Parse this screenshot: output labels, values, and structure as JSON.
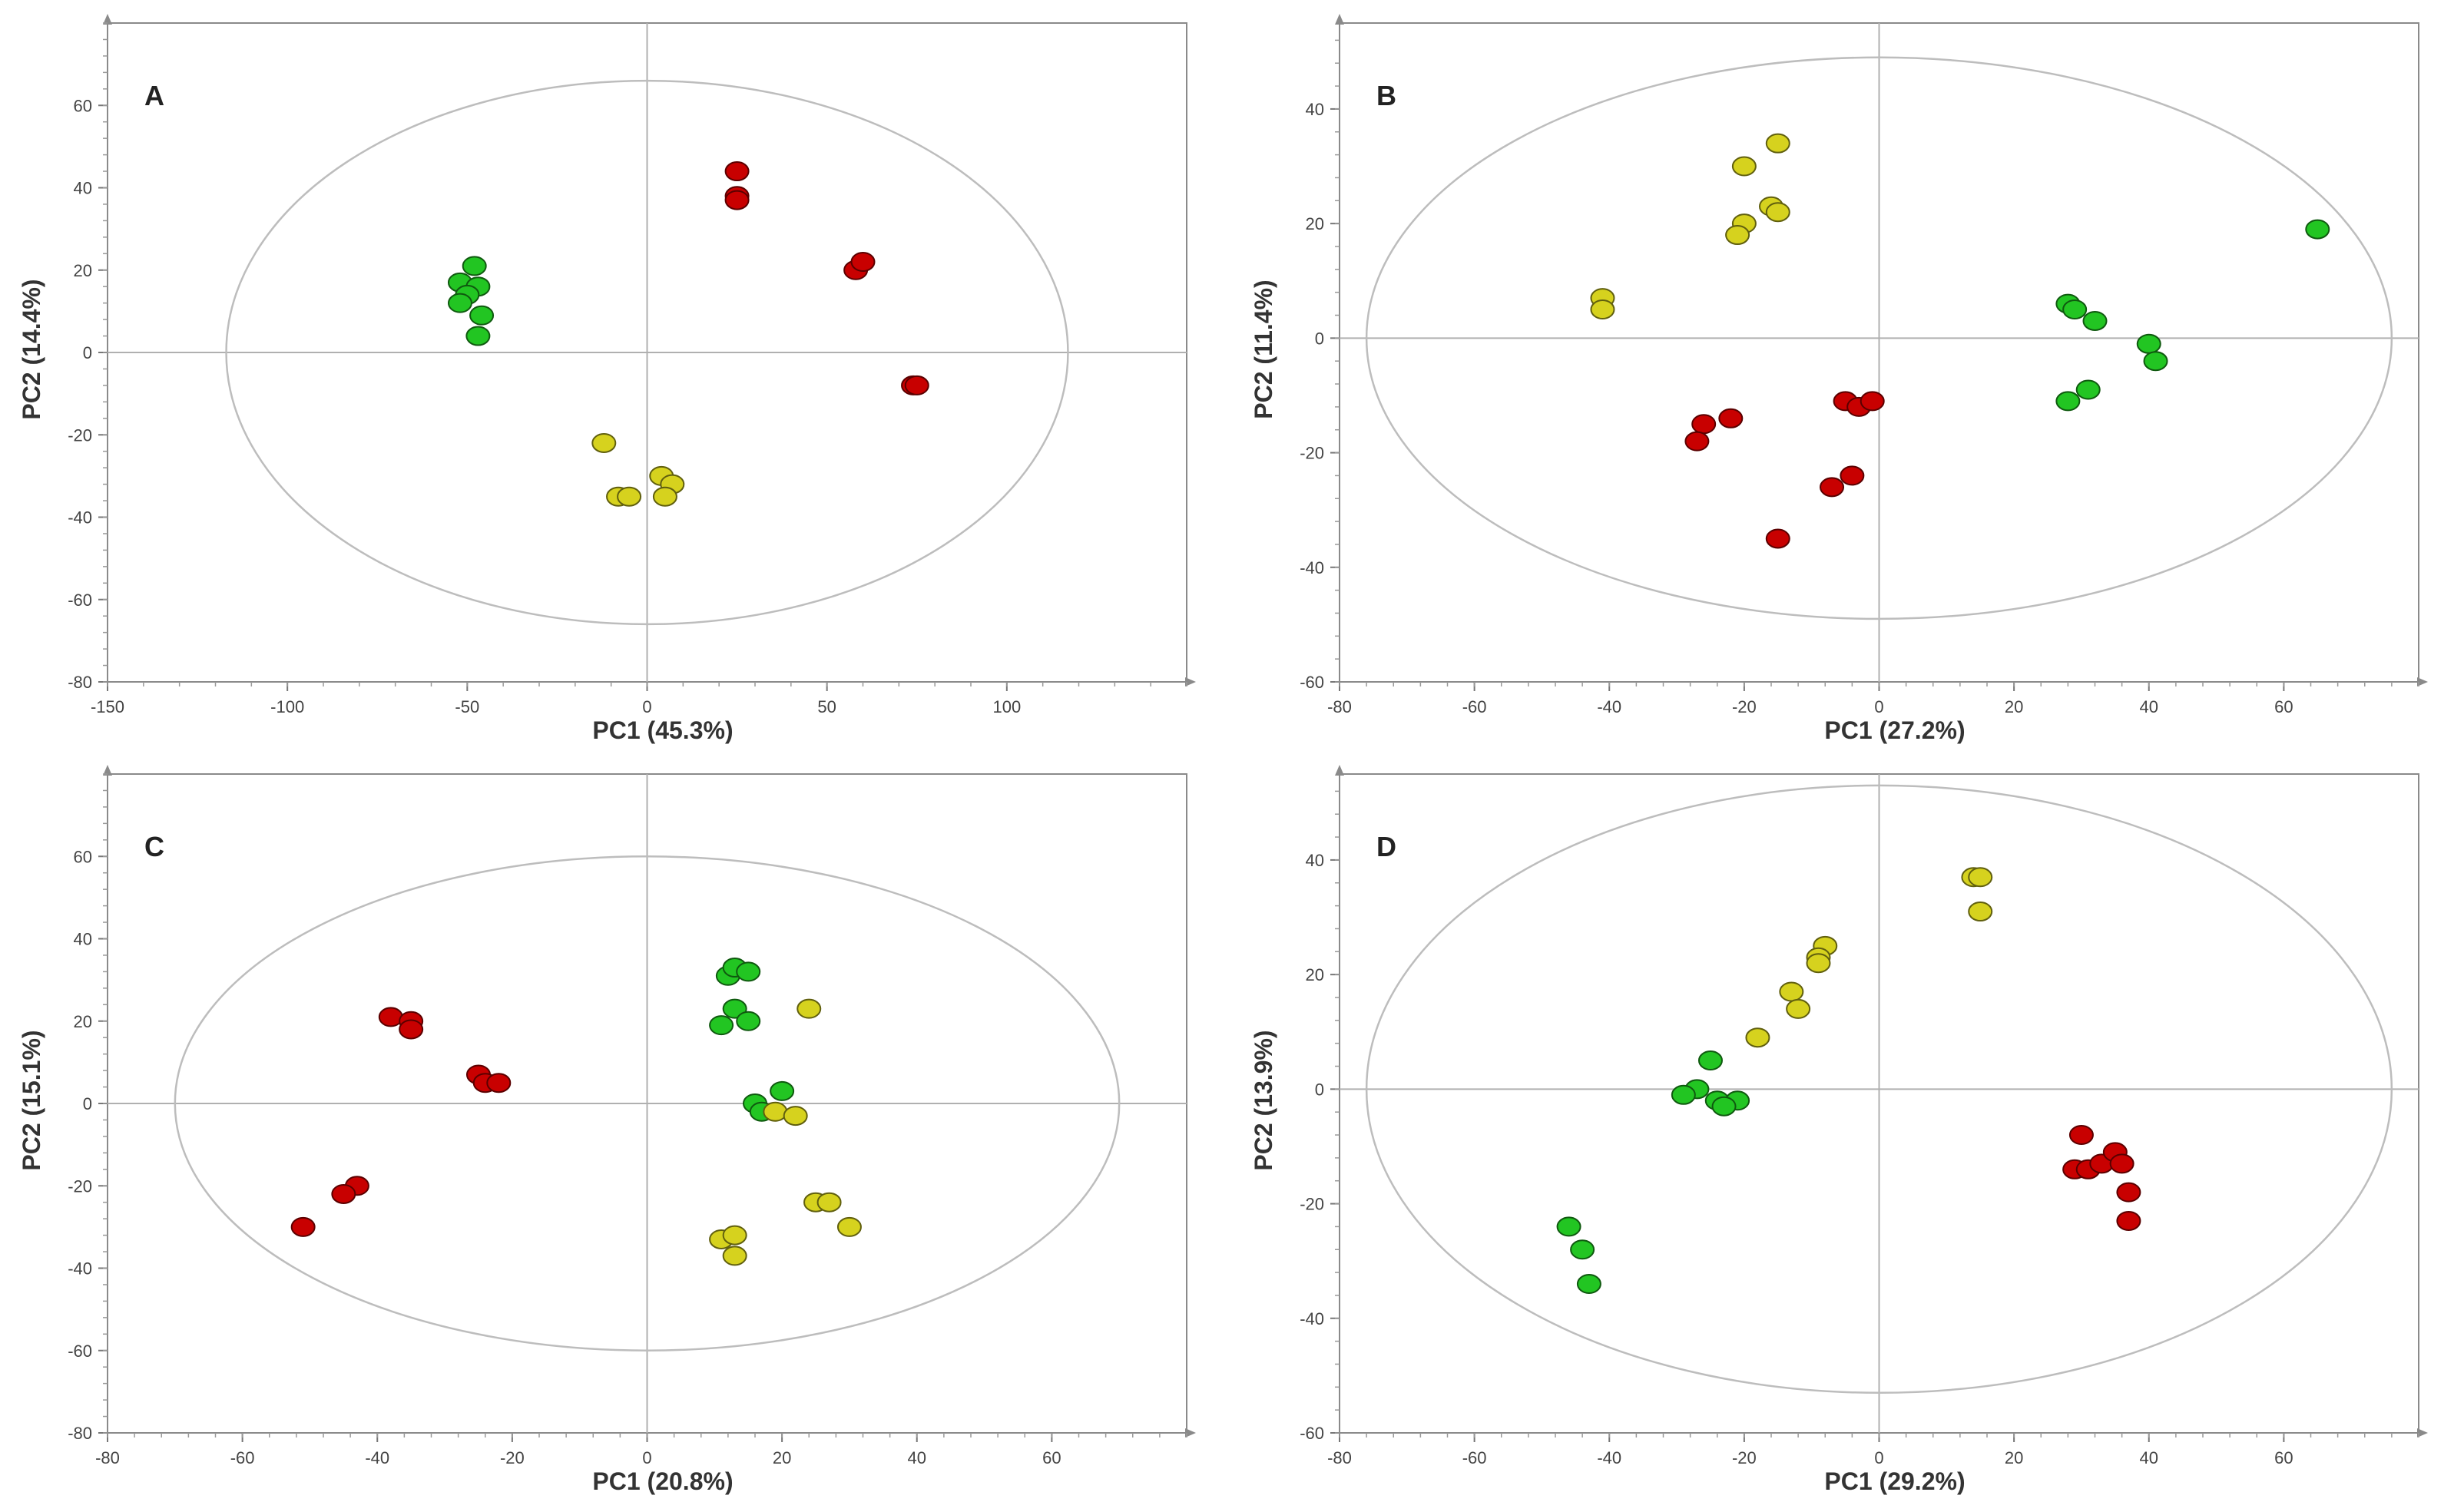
{
  "chart_data": [
    {
      "type": "scatter",
      "label": "A",
      "xlabel": "PC1 (45.3%)",
      "ylabel": "PC2 (14.4%)",
      "xlim": [
        -150,
        150
      ],
      "ylim": [
        -80,
        80
      ],
      "xticks": [
        -150,
        -100,
        -50,
        0,
        50,
        100
      ],
      "yticks": [
        -80,
        -60,
        -40,
        -20,
        0,
        20,
        40,
        60
      ],
      "ellipse": {
        "cx": 0,
        "cy": 0,
        "rx": 117,
        "ry": 66
      },
      "series": [
        {
          "name": "red",
          "color": "#c80000",
          "points": [
            [
              25,
              44
            ],
            [
              25,
              38
            ],
            [
              25,
              37
            ],
            [
              58,
              20
            ],
            [
              60,
              22
            ],
            [
              74,
              -8
            ],
            [
              75,
              -8
            ]
          ]
        },
        {
          "name": "green",
          "color": "#22c522",
          "points": [
            [
              -48,
              21
            ],
            [
              -52,
              17
            ],
            [
              -47,
              16
            ],
            [
              -50,
              14
            ],
            [
              -52,
              12
            ],
            [
              -46,
              9
            ],
            [
              -47,
              4
            ]
          ]
        },
        {
          "name": "yellow",
          "color": "#d6d21e",
          "points": [
            [
              -12,
              -22
            ],
            [
              -8,
              -35
            ],
            [
              -5,
              -35
            ],
            [
              4,
              -30
            ],
            [
              7,
              -32
            ],
            [
              5,
              -35
            ]
          ]
        }
      ]
    },
    {
      "type": "scatter",
      "label": "B",
      "xlabel": "PC1 (27.2%)",
      "ylabel": "PC2 (11.4%)",
      "xlim": [
        -80,
        80
      ],
      "ylim": [
        -60,
        55
      ],
      "xticks": [
        -80,
        -60,
        -40,
        -20,
        0,
        20,
        40,
        60
      ],
      "yticks": [
        -60,
        -40,
        -20,
        0,
        20,
        40
      ],
      "ellipse": {
        "cx": 0,
        "cy": 0,
        "rx": 76,
        "ry": 49
      },
      "series": [
        {
          "name": "red",
          "color": "#c80000",
          "points": [
            [
              -26,
              -15
            ],
            [
              -27,
              -18
            ],
            [
              -22,
              -14
            ],
            [
              -15,
              -35
            ],
            [
              -7,
              -26
            ],
            [
              -5,
              -11
            ],
            [
              -3,
              -12
            ],
            [
              -1,
              -11
            ],
            [
              -4,
              -24
            ]
          ]
        },
        {
          "name": "green",
          "color": "#22c522",
          "points": [
            [
              28,
              6
            ],
            [
              29,
              5
            ],
            [
              32,
              3
            ],
            [
              40,
              -1
            ],
            [
              41,
              -4
            ],
            [
              31,
              -9
            ],
            [
              28,
              -11
            ],
            [
              65,
              19
            ]
          ]
        },
        {
          "name": "yellow",
          "color": "#d6d21e",
          "points": [
            [
              -41,
              7
            ],
            [
              -41,
              5
            ],
            [
              -20,
              30
            ],
            [
              -15,
              34
            ],
            [
              -16,
              23
            ],
            [
              -15,
              22
            ],
            [
              -20,
              20
            ],
            [
              -21,
              18
            ]
          ]
        }
      ]
    },
    {
      "type": "scatter",
      "label": "C",
      "xlabel": "PC1 (20.8%)",
      "ylabel": "PC2 (15.1%)",
      "xlim": [
        -80,
        80
      ],
      "ylim": [
        -80,
        80
      ],
      "xticks": [
        -80,
        -60,
        -40,
        -20,
        0,
        20,
        40,
        60
      ],
      "yticks": [
        -80,
        -60,
        -40,
        -20,
        0,
        20,
        40,
        60
      ],
      "ellipse": {
        "cx": 0,
        "cy": 0,
        "rx": 70,
        "ry": 60
      },
      "series": [
        {
          "name": "red",
          "color": "#c80000",
          "points": [
            [
              -38,
              21
            ],
            [
              -35,
              20
            ],
            [
              -35,
              18
            ],
            [
              -25,
              7
            ],
            [
              -24,
              5
            ],
            [
              -22,
              5
            ],
            [
              -43,
              -20
            ],
            [
              -45,
              -22
            ],
            [
              -51,
              -30
            ]
          ]
        },
        {
          "name": "green",
          "color": "#22c522",
          "points": [
            [
              12,
              31
            ],
            [
              13,
              33
            ],
            [
              15,
              32
            ],
            [
              13,
              23
            ],
            [
              15,
              20
            ],
            [
              11,
              19
            ],
            [
              20,
              3
            ],
            [
              16,
              0
            ],
            [
              17,
              -2
            ]
          ]
        },
        {
          "name": "yellow",
          "color": "#d6d21e",
          "points": [
            [
              24,
              23
            ],
            [
              19,
              -2
            ],
            [
              22,
              -3
            ],
            [
              25,
              -24
            ],
            [
              27,
              -24
            ],
            [
              30,
              -30
            ],
            [
              11,
              -33
            ],
            [
              13,
              -32
            ],
            [
              13,
              -37
            ]
          ]
        }
      ]
    },
    {
      "type": "scatter",
      "label": "D",
      "xlabel": "PC1 (29.2%)",
      "ylabel": "PC2 (13.9%)",
      "xlim": [
        -80,
        80
      ],
      "ylim": [
        -60,
        55
      ],
      "xticks": [
        -80,
        -60,
        -40,
        -20,
        0,
        20,
        40,
        60
      ],
      "yticks": [
        -60,
        -40,
        -20,
        0,
        20,
        40
      ],
      "ellipse": {
        "cx": 0,
        "cy": 0,
        "rx": 76,
        "ry": 53
      },
      "series": [
        {
          "name": "red",
          "color": "#c80000",
          "points": [
            [
              30,
              -8
            ],
            [
              29,
              -14
            ],
            [
              31,
              -14
            ],
            [
              33,
              -13
            ],
            [
              35,
              -11
            ],
            [
              36,
              -13
            ],
            [
              37,
              -18
            ],
            [
              37,
              -23
            ]
          ]
        },
        {
          "name": "green",
          "color": "#22c522",
          "points": [
            [
              -25,
              5
            ],
            [
              -27,
              0
            ],
            [
              -29,
              -1
            ],
            [
              -24,
              -2
            ],
            [
              -21,
              -2
            ],
            [
              -23,
              -3
            ],
            [
              -46,
              -24
            ],
            [
              -44,
              -28
            ],
            [
              -43,
              -34
            ]
          ]
        },
        {
          "name": "yellow",
          "color": "#d6d21e",
          "points": [
            [
              14,
              37
            ],
            [
              15,
              37
            ],
            [
              15,
              31
            ],
            [
              -8,
              25
            ],
            [
              -9,
              23
            ],
            [
              -9,
              22
            ],
            [
              -13,
              17
            ],
            [
              -12,
              14
            ],
            [
              -18,
              9
            ]
          ]
        }
      ]
    }
  ]
}
